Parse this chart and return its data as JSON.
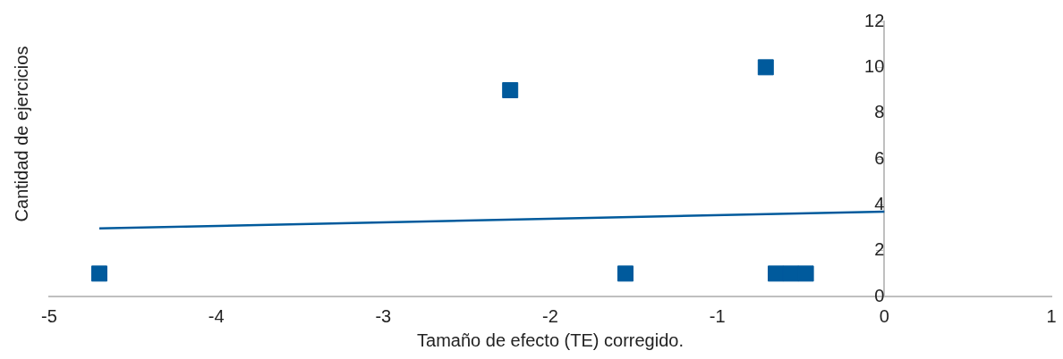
{
  "chart_data": {
    "type": "scatter",
    "xlabel": "Tamaño de efecto (TE) corregido.",
    "ylabel": "Cantidad de ejercicios",
    "xlim": [
      -5,
      1
    ],
    "xticks": [
      -5,
      -4,
      -3,
      -2,
      -1,
      0,
      1
    ],
    "ylim": [
      0,
      12
    ],
    "yticks": [
      0,
      2,
      4,
      6,
      8,
      10,
      12
    ],
    "grid": false,
    "legend": false,
    "marker": "square",
    "series": [
      {
        "color": "#005a9c",
        "x": [
          -4.7,
          -2.24,
          -1.55,
          -0.71,
          -0.65,
          -0.56,
          -0.47
        ],
        "values": [
          1,
          9,
          1,
          10,
          1,
          1,
          1
        ]
      },
      {
        "type": "line",
        "marker": "none",
        "color": "#005a9c",
        "x": [
          -4.7,
          0
        ],
        "values": [
          2.97,
          3.7
        ]
      }
    ]
  }
}
